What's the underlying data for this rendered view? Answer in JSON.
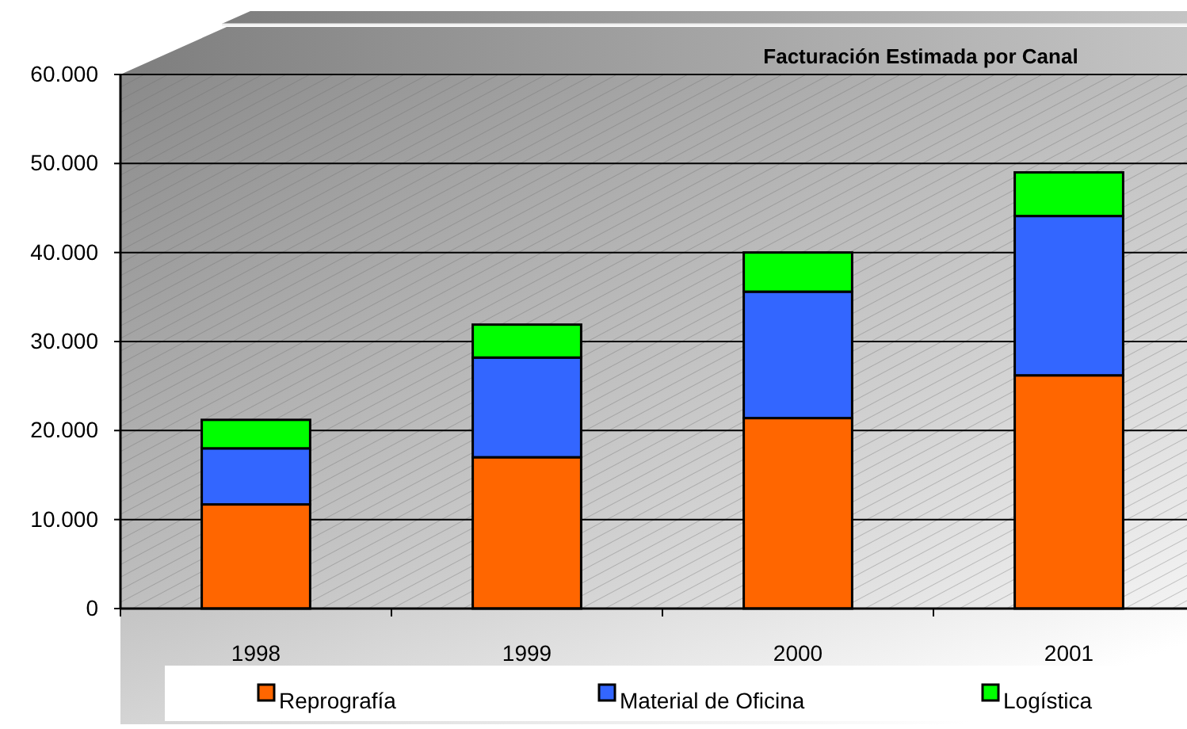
{
  "chart_data": {
    "type": "bar",
    "title": "Facturación Estimada por Canal",
    "categories": [
      "1998",
      "1999",
      "2000",
      "2001"
    ],
    "stacked": true,
    "series": [
      {
        "name": "Reprografía",
        "color": "#ff6600",
        "values": [
          11700,
          17000,
          21400,
          26200
        ]
      },
      {
        "name": "Material de Oficina",
        "color": "#3366ff",
        "values": [
          6300,
          11200,
          14200,
          17900
        ]
      },
      {
        "name": "Logística",
        "color": "#00ff00",
        "values": [
          3200,
          3700,
          4400,
          4900
        ]
      }
    ],
    "ylim": [
      0,
      60000
    ],
    "yticks": [
      0,
      {
        "value": 10000,
        "label": "10.000"
      },
      {
        "value": 20000,
        "label": "20.000"
      },
      {
        "value": 30000,
        "label": "30.000"
      },
      {
        "value": 40000,
        "label": "40.000"
      },
      {
        "value": 50000,
        "label": "50.000"
      },
      {
        "value": 60000,
        "label": "60.000"
      }
    ],
    "grid": "y",
    "legend": "bottom"
  }
}
